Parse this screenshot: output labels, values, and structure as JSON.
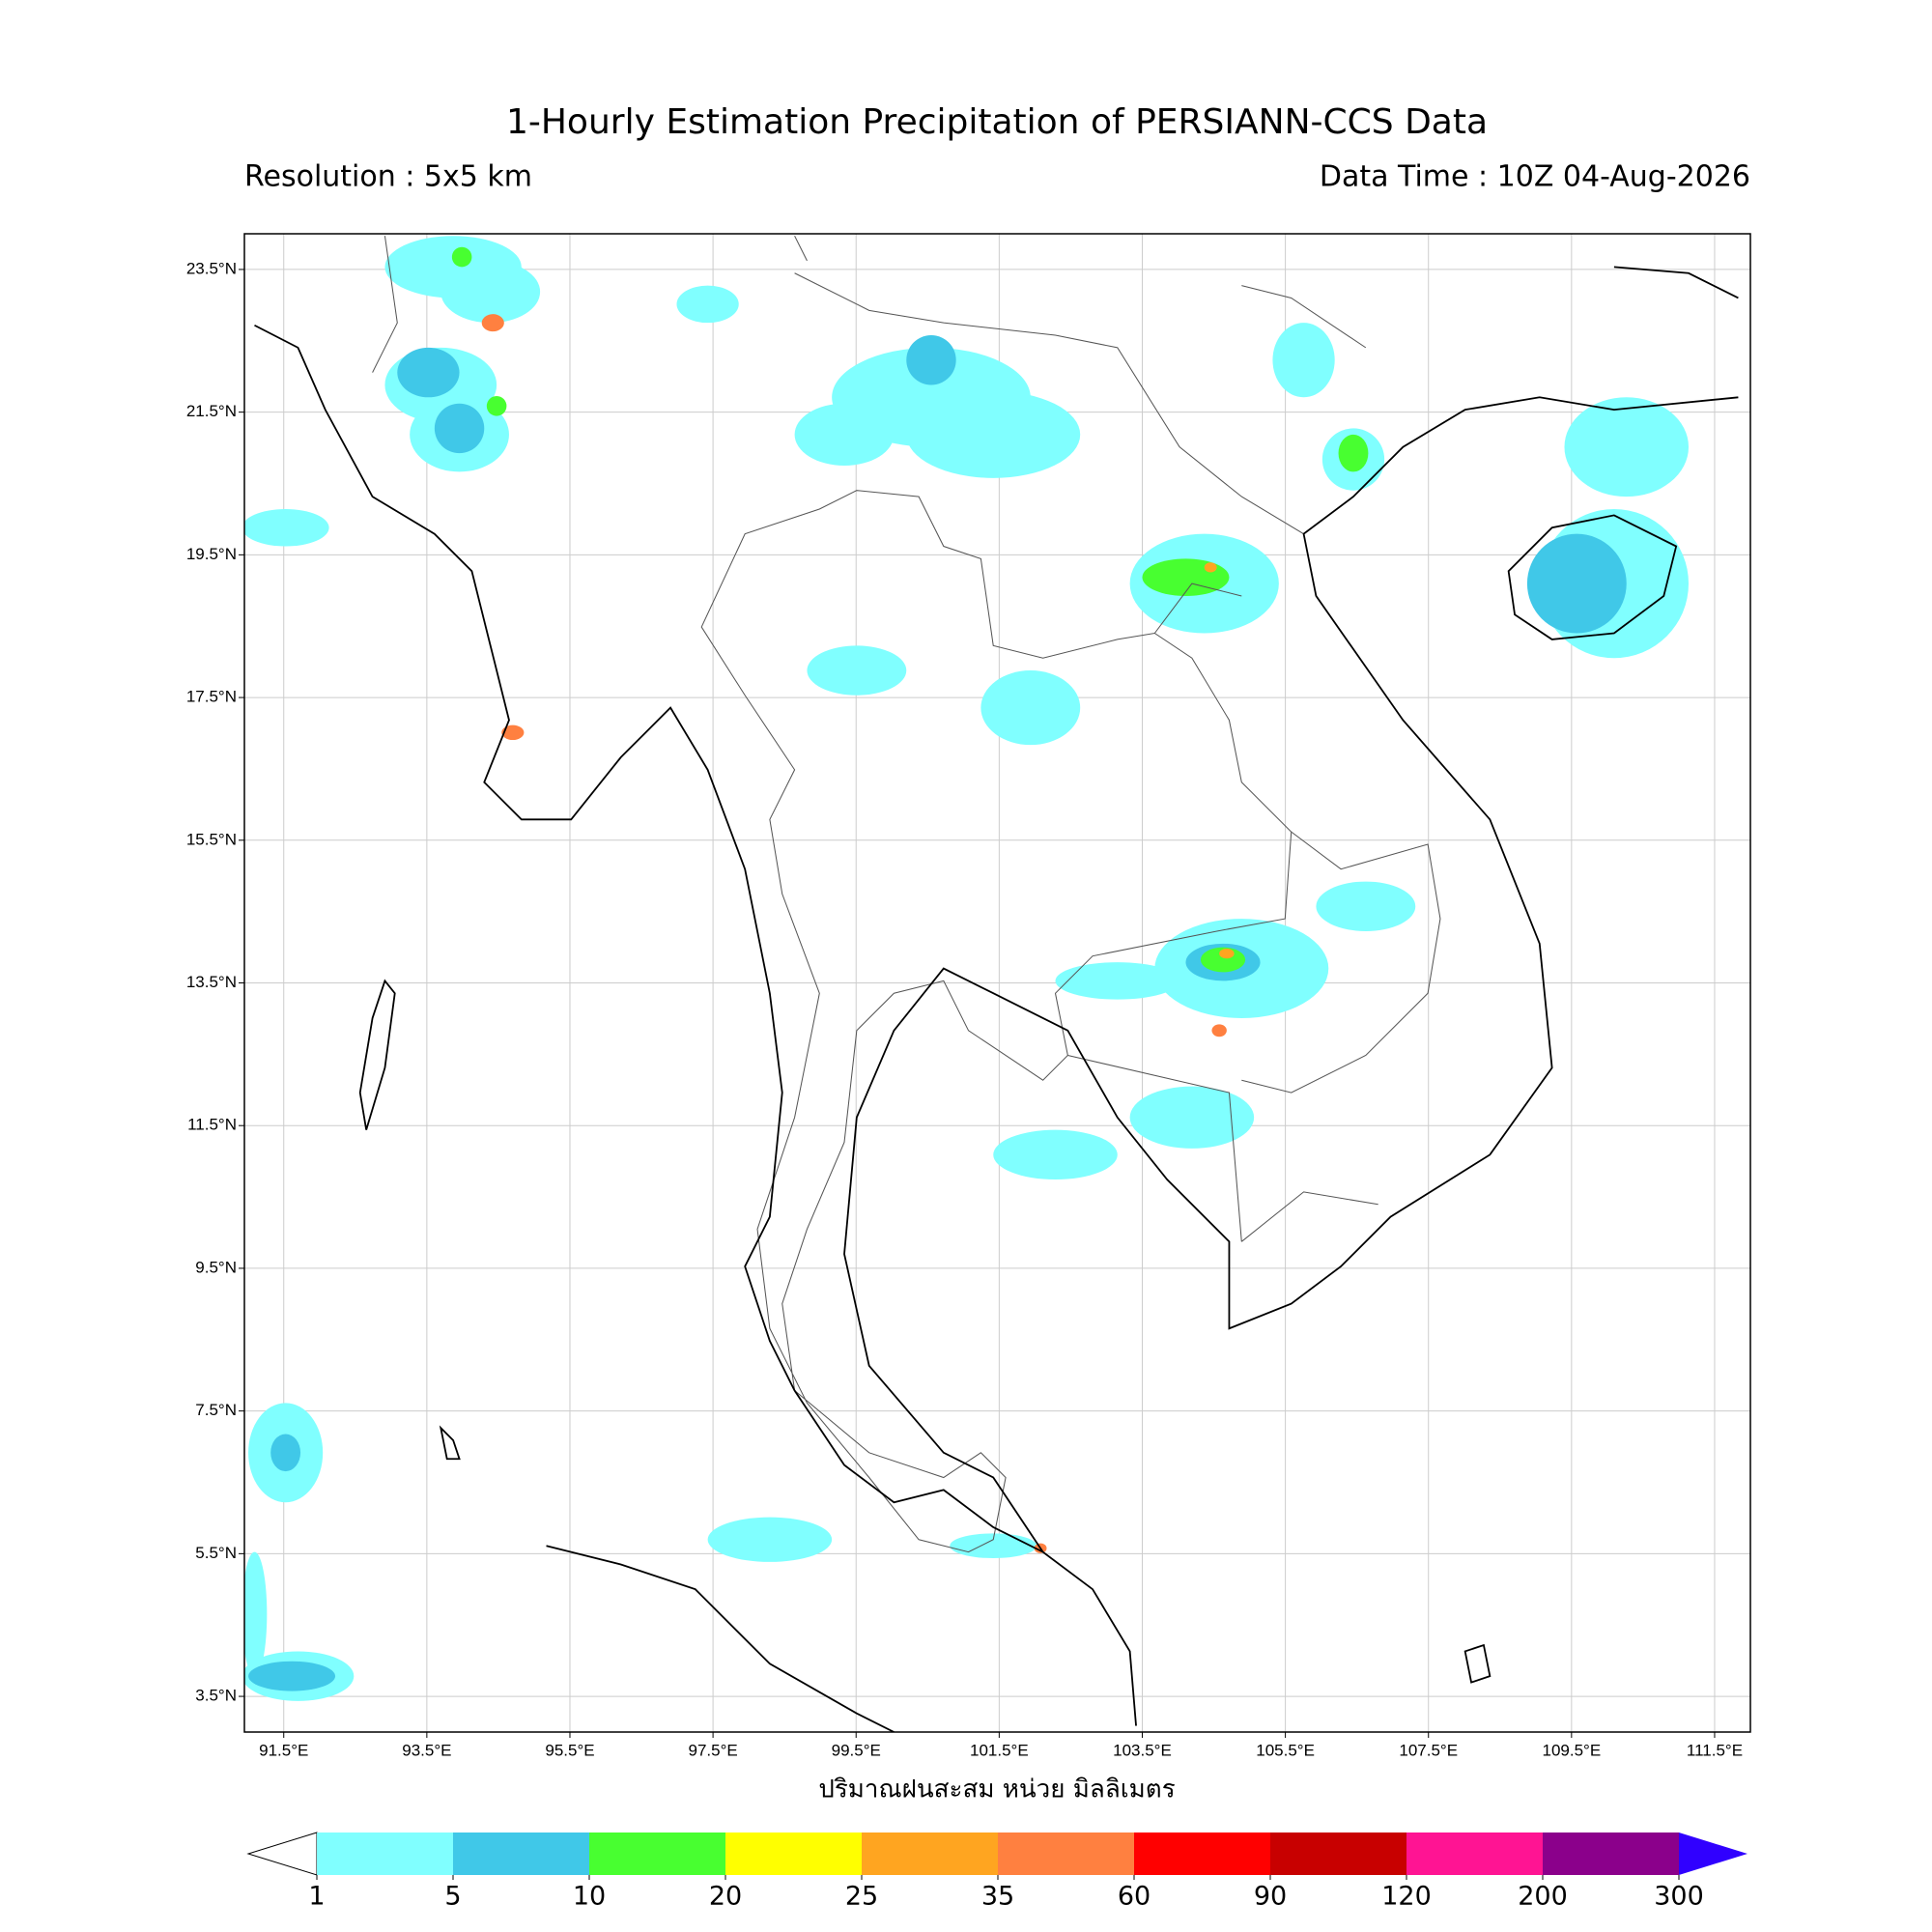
{
  "title": "1-Hourly Estimation Precipitation of PERSIANN-CCS Data",
  "resolution": "Resolution : 5x5 km",
  "data_time": "Data Time : 10Z 04-Aug-2026",
  "map": {
    "xlim": [
      90.95,
      112.0
    ],
    "ylim": [
      3.0,
      24.0
    ],
    "grid": true,
    "xticks": [
      {
        "value": 91.5,
        "label": "91.5°E"
      },
      {
        "value": 93.5,
        "label": "93.5°E"
      },
      {
        "value": 95.5,
        "label": "95.5°E"
      },
      {
        "value": 97.5,
        "label": "97.5°E"
      },
      {
        "value": 99.5,
        "label": "99.5°E"
      },
      {
        "value": 101.5,
        "label": "101.5°E"
      },
      {
        "value": 103.5,
        "label": "103.5°E"
      },
      {
        "value": 105.5,
        "label": "105.5°E"
      },
      {
        "value": 107.5,
        "label": "107.5°E"
      },
      {
        "value": 109.5,
        "label": "109.5°E"
      },
      {
        "value": 111.5,
        "label": "111.5°E"
      }
    ],
    "yticks": [
      {
        "value": 3.5,
        "label": "3.5°N"
      },
      {
        "value": 5.5,
        "label": "5.5°N"
      },
      {
        "value": 7.5,
        "label": "7.5°N"
      },
      {
        "value": 9.5,
        "label": "9.5°N"
      },
      {
        "value": 11.5,
        "label": "11.5°N"
      },
      {
        "value": 13.5,
        "label": "13.5°N"
      },
      {
        "value": 15.5,
        "label": "15.5°N"
      },
      {
        "value": 17.5,
        "label": "17.5°N"
      },
      {
        "value": 19.5,
        "label": "19.5°N"
      },
      {
        "value": 21.5,
        "label": "21.5°N"
      },
      {
        "value": 23.5,
        "label": "23.5°N"
      }
    ]
  },
  "colorbar": {
    "label": "ปริมาณฝนสะสม หน่วย มิลลิเมตร",
    "levels": [
      1,
      5,
      10,
      20,
      25,
      35,
      60,
      90,
      120,
      200,
      300
    ],
    "colors": [
      "#80ffff",
      "#40c8e8",
      "#48ff30",
      "#ffff00",
      "#ffa520",
      "#ff8040",
      "#ff0000",
      "#c80000",
      "#ff1493",
      "#8b008b"
    ],
    "under_color": "#ffffff",
    "over_color": "#3000ff"
  }
}
